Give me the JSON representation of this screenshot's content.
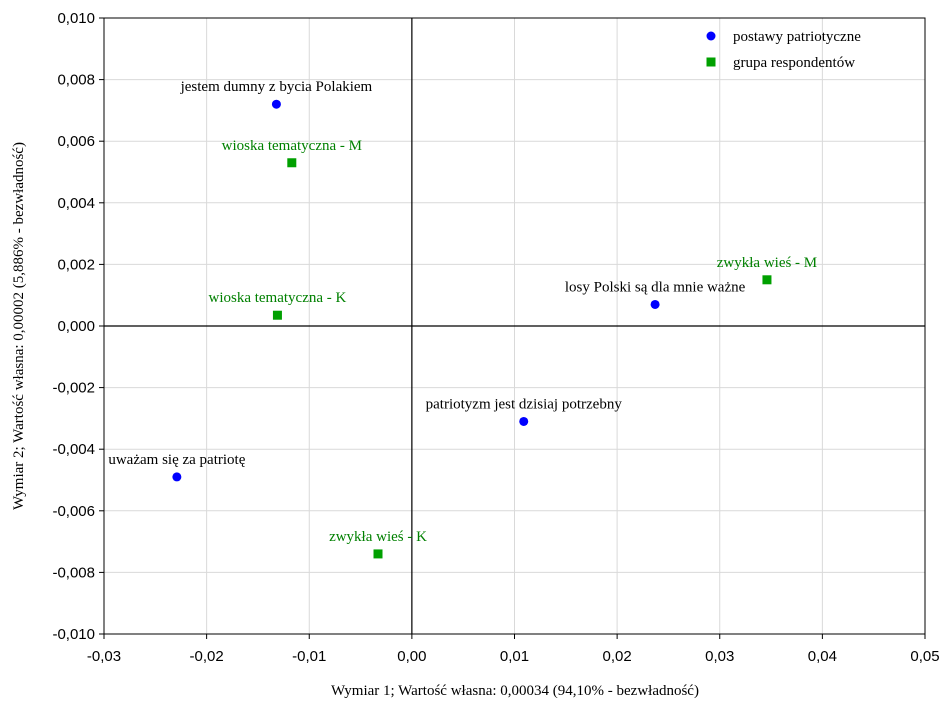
{
  "chart_data": {
    "type": "scatter",
    "xlabel": "Wymiar 1; Wartość własna: 0,00034 (94,10% - bezwładność)",
    "ylabel": "Wymiar 2; Wartość własna: 0,00002 (5,886% - bezwładność)",
    "xlim": [
      -0.03,
      0.05
    ],
    "ylim": [
      -0.01,
      0.01
    ],
    "x_ticks": [
      -0.03,
      -0.02,
      -0.01,
      0.0,
      0.01,
      0.02,
      0.03,
      0.04,
      0.05
    ],
    "x_tick_labels": [
      "-0,03",
      "-0,02",
      "-0,01",
      "0,00",
      "0,01",
      "0,02",
      "0,03",
      "0,04",
      "0,05"
    ],
    "y_ticks": [
      0.01,
      0.008,
      0.006,
      0.004,
      0.002,
      0.0,
      -0.002,
      -0.004,
      -0.006,
      -0.008,
      -0.01
    ],
    "y_tick_labels": [
      "0,010",
      "0,008",
      "0,006",
      "0,004",
      "0,002",
      "0,000",
      "-0,002",
      "-0,004",
      "-0,006",
      "-0,008",
      "-0,010"
    ],
    "grid": true,
    "legend_position": "top-right",
    "series": [
      {
        "name": "postawy patriotyczne",
        "marker": "circle",
        "color": "#0000ff",
        "label_color": "#000000",
        "points": [
          {
            "label": "jestem dumny z bycia Polakiem",
            "x": -0.0132,
            "y": 0.0072
          },
          {
            "label": "losy Polski są dla mnie ważne",
            "x": 0.0237,
            "y": 0.0007
          },
          {
            "label": "patriotyzm jest dzisiaj potrzebny",
            "x": 0.0109,
            "y": -0.0031
          },
          {
            "label": "uważam się za patriotę",
            "x": -0.0229,
            "y": -0.0049
          }
        ]
      },
      {
        "name": "grupa respondentów",
        "marker": "square",
        "color": "#00a000",
        "label_color": "#008000",
        "points": [
          {
            "label": "wioska tematyczna - M",
            "x": -0.0117,
            "y": 0.0053
          },
          {
            "label": "wioska tematyczna - K",
            "x": -0.0131,
            "y": 0.00035
          },
          {
            "label": "zwykła wieś - M",
            "x": 0.0346,
            "y": 0.0015
          },
          {
            "label": "zwykła wieś - K",
            "x": -0.0033,
            "y": -0.0074
          }
        ]
      }
    ]
  }
}
